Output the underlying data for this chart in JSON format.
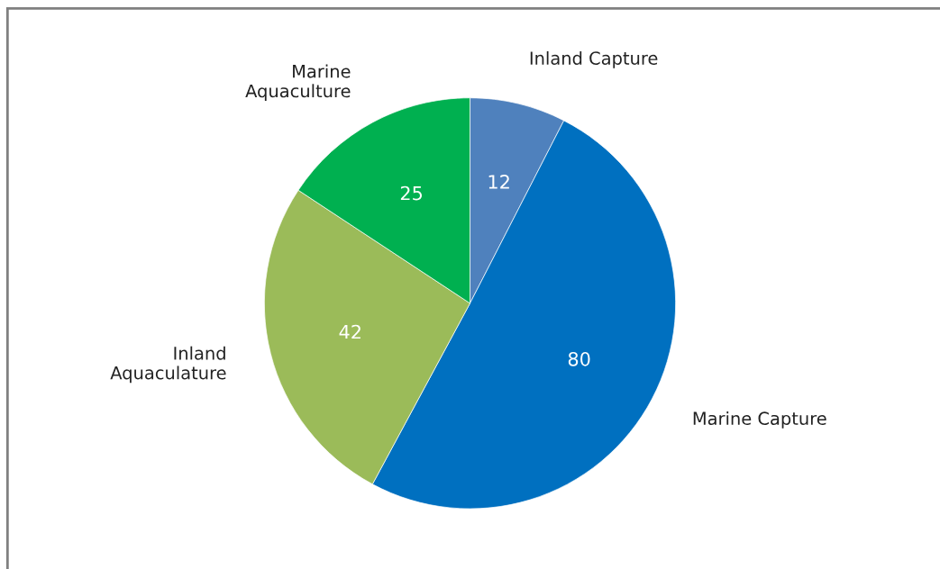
{
  "chart_data": {
    "type": "pie",
    "categories": [
      "Inland Capture",
      "Marine Capture",
      "Inland Aquaculature",
      "Marine Aquaculture"
    ],
    "values": [
      12,
      80,
      42,
      25
    ],
    "colors": [
      "#4f81bd",
      "#0070c0",
      "#9bbb59",
      "#00b050"
    ],
    "data_labels": true,
    "legend": false
  }
}
